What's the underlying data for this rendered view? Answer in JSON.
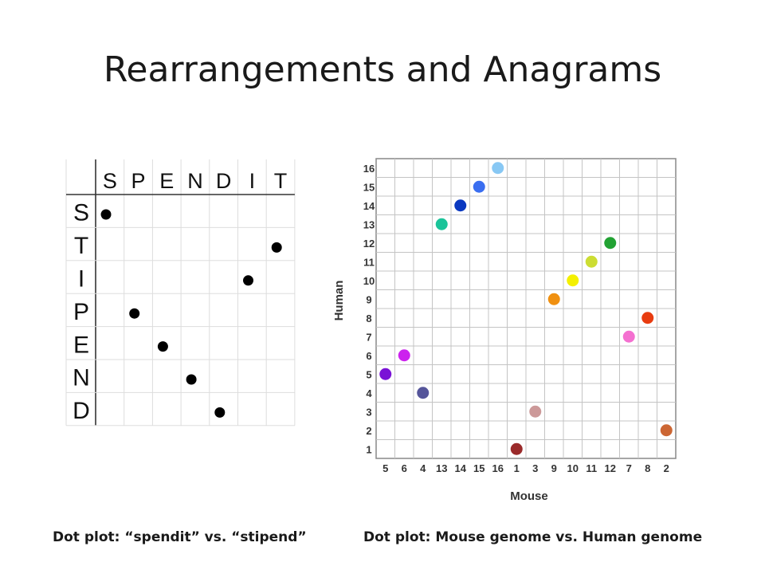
{
  "slide": {
    "title": "Rearrangements and Anagrams",
    "caption_left": "Dot plot: “spendit” vs. “stipend”",
    "caption_right": "Dot plot: Mouse genome vs. Human genome"
  },
  "chart_data": [
    {
      "type": "scatter",
      "columns": [
        "S",
        "P",
        "E",
        "N",
        "D",
        "I",
        "T"
      ],
      "rows": [
        "S",
        "T",
        "I",
        "P",
        "E",
        "N",
        "D"
      ],
      "points": [
        {
          "row": "S",
          "col": "S"
        },
        {
          "row": "T",
          "col": "T"
        },
        {
          "row": "I",
          "col": "I"
        },
        {
          "row": "P",
          "col": "P"
        },
        {
          "row": "E",
          "col": "E"
        },
        {
          "row": "N",
          "col": "N"
        },
        {
          "row": "D",
          "col": "D"
        }
      ],
      "dot_color": "#000000"
    },
    {
      "type": "scatter",
      "xlabel": "Mouse",
      "ylabel": "Human",
      "x_categories": [
        "5",
        "6",
        "4",
        "13",
        "14",
        "15",
        "16",
        "1",
        "3",
        "9",
        "10",
        "11",
        "12",
        "7",
        "8",
        "2"
      ],
      "y_categories": [
        "1",
        "2",
        "3",
        "4",
        "5",
        "6",
        "7",
        "8",
        "9",
        "10",
        "11",
        "12",
        "13",
        "14",
        "15",
        "16"
      ],
      "points": [
        {
          "x": "5",
          "y": "5",
          "color": "#7a12d6"
        },
        {
          "x": "6",
          "y": "6",
          "color": "#cc22ee"
        },
        {
          "x": "4",
          "y": "4",
          "color": "#55559a"
        },
        {
          "x": "13",
          "y": "13",
          "color": "#1bc49a"
        },
        {
          "x": "14",
          "y": "14",
          "color": "#0a38c0"
        },
        {
          "x": "15",
          "y": "15",
          "color": "#3a6ef0"
        },
        {
          "x": "16",
          "y": "16",
          "color": "#88c8f4"
        },
        {
          "x": "1",
          "y": "1",
          "color": "#9a2a2a"
        },
        {
          "x": "3",
          "y": "3",
          "color": "#cc9999"
        },
        {
          "x": "9",
          "y": "9",
          "color": "#f09010"
        },
        {
          "x": "10",
          "y": "10",
          "color": "#f4f000"
        },
        {
          "x": "11",
          "y": "11",
          "color": "#ccdd33"
        },
        {
          "x": "12",
          "y": "12",
          "color": "#22a233"
        },
        {
          "x": "7",
          "y": "7",
          "color": "#f470d0"
        },
        {
          "x": "8",
          "y": "8",
          "color": "#e83c10"
        },
        {
          "x": "2",
          "y": "2",
          "color": "#cc6633"
        }
      ]
    }
  ]
}
